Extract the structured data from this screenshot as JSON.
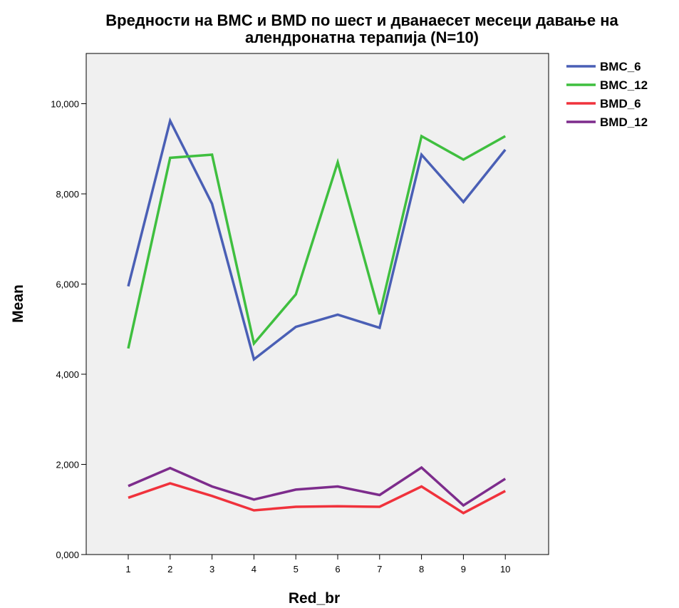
{
  "chart_data": {
    "type": "line",
    "title_line1": "Вредности на BMC и BMD по шест и дванаесет месеци давање на",
    "title_line2": "алендронатна терапија (N=10)",
    "xlabel": "Red_br",
    "ylabel": "Mean",
    "categories": [
      "1",
      "2",
      "3",
      "4",
      "5",
      "6",
      "7",
      "8",
      "9",
      "10"
    ],
    "y_ticks": [
      0,
      2,
      4,
      6,
      8,
      10
    ],
    "y_tick_labels": [
      "0,000",
      "2,000",
      "4,000",
      "6,000",
      "8,000",
      "10,000"
    ],
    "ylim": [
      0,
      11
    ],
    "grid": false,
    "legend_position": "right",
    "series": [
      {
        "name": "BMC_6",
        "color": "#4a5fb5",
        "values": [
          5.95,
          9.62,
          7.78,
          4.33,
          5.05,
          5.32,
          5.03,
          8.87,
          7.82,
          8.98
        ]
      },
      {
        "name": "BMC_12",
        "color": "#3fbf3f",
        "values": [
          4.57,
          8.8,
          8.87,
          4.68,
          5.77,
          8.7,
          5.33,
          9.28,
          8.76,
          9.28
        ]
      },
      {
        "name": "BMD_6",
        "color": "#f0323c",
        "values": [
          1.26,
          1.58,
          1.3,
          0.98,
          1.06,
          1.07,
          1.06,
          1.51,
          0.92,
          1.41
        ]
      },
      {
        "name": "BMD_12",
        "color": "#7d2c8c",
        "values": [
          1.52,
          1.92,
          1.51,
          1.22,
          1.44,
          1.51,
          1.32,
          1.93,
          1.09,
          1.68
        ]
      }
    ]
  }
}
